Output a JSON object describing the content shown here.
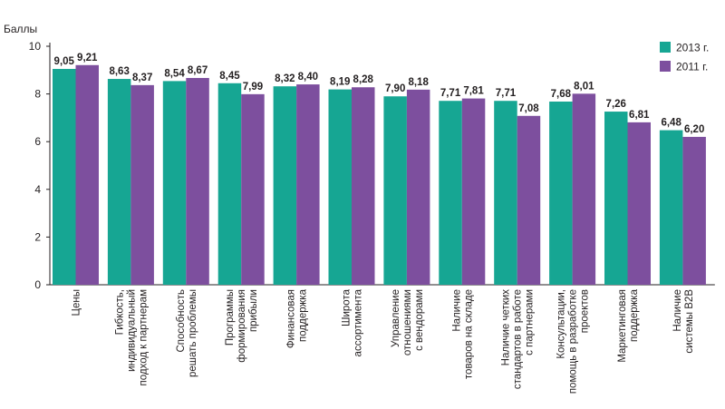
{
  "chart_data": {
    "type": "bar",
    "ylabel": "Баллы",
    "ylim": [
      0,
      10
    ],
    "yticks": [
      0,
      2,
      4,
      6,
      8,
      10
    ],
    "grid": false,
    "legend_position": "top-right",
    "categories": [
      [
        "Цены"
      ],
      [
        "Гибкость,",
        "индивидуальный",
        "подход к партнерам"
      ],
      [
        "Способность",
        "решать проблемы"
      ],
      [
        "Программы",
        "формирования",
        "прибыли"
      ],
      [
        "Финансовая",
        "поддержка"
      ],
      [
        "Широта",
        "ассортимента"
      ],
      [
        "Управление",
        "отношениями",
        "с вендорами"
      ],
      [
        "Наличие",
        "товаров на складе"
      ],
      [
        "Наличие четких",
        "стандартов в работе",
        "с партнерами"
      ],
      [
        "Консультации,",
        "помощь в разработке",
        "проектов"
      ],
      [
        "Маркетинговая",
        "поддержка"
      ],
      [
        "Наличие",
        "системы B2B"
      ]
    ],
    "series": [
      {
        "name": "2013 г.",
        "color": "#16a693",
        "values": [
          9.05,
          8.63,
          8.54,
          8.45,
          8.32,
          8.19,
          7.9,
          7.71,
          7.71,
          7.68,
          7.26,
          6.48
        ],
        "labels": [
          "9,05",
          "8,63",
          "8,54",
          "8,45",
          "8,32",
          "8,19",
          "7,90",
          "7,71",
          "7,71",
          "7,68",
          "7,26",
          "6,48"
        ]
      },
      {
        "name": "2011 г.",
        "color": "#7d4f9e",
        "values": [
          9.21,
          8.37,
          8.67,
          7.99,
          8.4,
          8.28,
          8.18,
          7.81,
          7.08,
          8.01,
          6.81,
          6.2
        ],
        "labels": [
          "9,21",
          "8,37",
          "8,67",
          "7,99",
          "8,40",
          "8,28",
          "8,18",
          "7,81",
          "7,08",
          "8,01",
          "6,81",
          "6,20"
        ]
      }
    ]
  }
}
